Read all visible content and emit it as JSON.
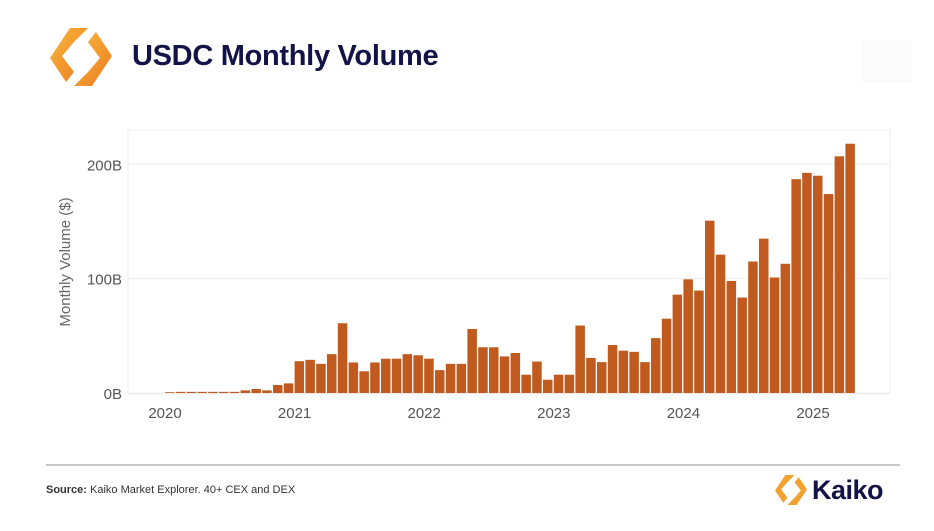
{
  "header": {
    "title": "USDC Monthly Volume",
    "logo": "kaiko-logo-icon"
  },
  "footer": {
    "source_label": "Source:",
    "source_text": " Kaiko Market Explorer. 40+ CEX and DEX",
    "brand": "Kaiko"
  },
  "colors": {
    "bar": "#C05A1E",
    "title": "#131347",
    "logo_orange": "#F08A24",
    "logo_yellow": "#F6B93B"
  },
  "chart_data": {
    "type": "bar",
    "title": "",
    "xlabel": "",
    "ylabel": "Monthly Volume ($)",
    "ylim": [
      0,
      230
    ],
    "yticks": [
      {
        "value": 0,
        "label": "0B"
      },
      {
        "value": 100,
        "label": "100B"
      },
      {
        "value": 200,
        "label": "200B"
      }
    ],
    "xticks": [
      "2020",
      "2021",
      "2022",
      "2023",
      "2024",
      "2025"
    ],
    "grid": true,
    "unit": "B USD",
    "start_month": "2020-01",
    "end_month": "2025-04",
    "values": [
      0.3,
      1,
      1,
      1,
      1,
      1,
      1,
      2.3,
      3.5,
      2.3,
      7,
      8.4,
      27.8,
      29,
      25.5,
      34,
      61,
      26.7,
      19,
      26.7,
      30,
      30,
      34,
      33,
      30,
      20,
      25.5,
      25.5,
      56,
      40,
      40,
      32,
      35,
      16,
      27.5,
      11.6,
      16,
      16,
      59,
      30.7,
      27,
      42,
      37,
      36,
      27,
      48,
      65,
      86,
      99.4,
      89.6,
      150.7,
      121,
      98,
      83.5,
      115,
      135,
      101,
      113,
      187,
      192.5,
      190,
      174,
      207,
      218
    ]
  }
}
